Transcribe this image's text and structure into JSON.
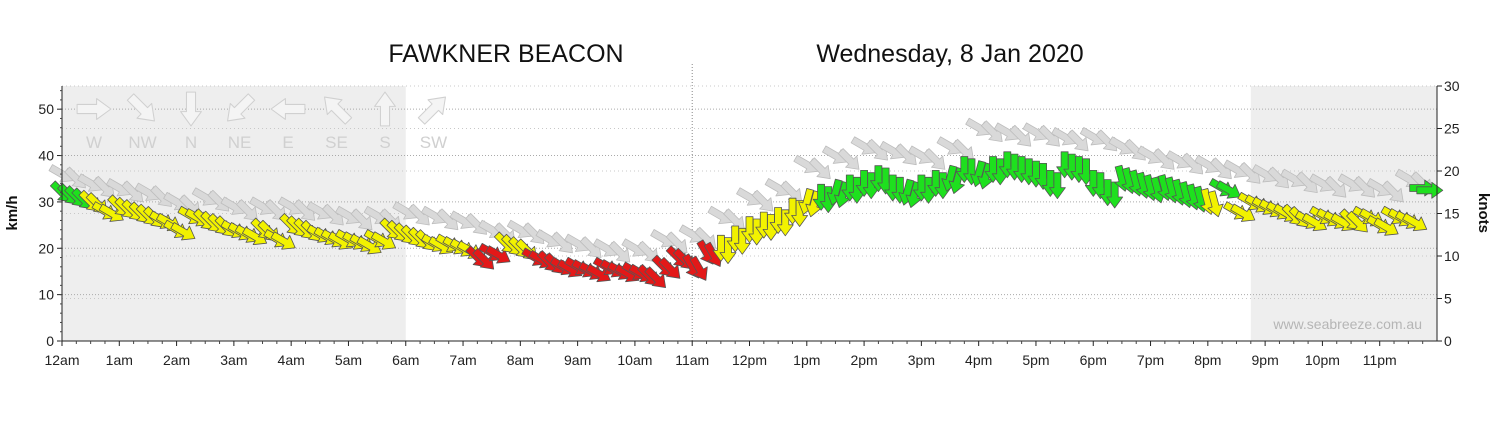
{
  "chart_data": {
    "type": "scatter",
    "title": "FAWKNER BEACON",
    "subtitle": "Wednesday, 8 Jan 2020",
    "ylabel": "km/h",
    "y2label": "knots",
    "watermark": "www.seabreeze.com.au",
    "ylim": [
      0,
      55
    ],
    "y2lim": [
      0,
      30
    ],
    "yticks": [
      0,
      10,
      20,
      30,
      40,
      50
    ],
    "y2ticks": [
      0,
      5,
      10,
      15,
      20,
      25,
      30
    ],
    "xlim": [
      0,
      24
    ],
    "xticks": [
      "12am",
      "1am",
      "2am",
      "3am",
      "4am",
      "5am",
      "6am",
      "7am",
      "8am",
      "9am",
      "10am",
      "11am",
      "12pm",
      "1pm",
      "2pm",
      "3pm",
      "4pm",
      "5pm",
      "6pm",
      "7pm",
      "8pm",
      "9pm",
      "10pm",
      "11pm"
    ],
    "current_time_hours": 11.0,
    "night_shading": [
      [
        0,
        6.0
      ],
      [
        20.75,
        24
      ]
    ],
    "grid": "horizontal-dotted",
    "legend": {
      "placement": "top-left",
      "items": [
        {
          "label": "W",
          "direction_deg": 270
        },
        {
          "label": "NW",
          "direction_deg": 315
        },
        {
          "label": "N",
          "direction_deg": 0
        },
        {
          "label": "NE",
          "direction_deg": 45
        },
        {
          "label": "E",
          "direction_deg": 90
        },
        {
          "label": "SE",
          "direction_deg": 135
        },
        {
          "label": "S",
          "direction_deg": 180
        },
        {
          "label": "SW",
          "direction_deg": 225
        }
      ]
    },
    "speed_colors": {
      "light": "#f2f200",
      "mid": "#e31818",
      "strong": "#1ee01e",
      "gust": "#d9d9d9"
    },
    "speed_bands_kmh": {
      "mid_below": 20,
      "strong_from": 31
    },
    "series": [
      {
        "name": "Average",
        "points": [
          [
            0.0,
            32,
            315
          ],
          [
            0.25,
            31,
            315
          ],
          [
            0.5,
            30,
            315
          ],
          [
            0.75,
            28,
            300
          ],
          [
            1.0,
            29,
            315
          ],
          [
            1.25,
            28,
            315
          ],
          [
            1.5,
            27,
            315
          ],
          [
            1.75,
            26,
            300
          ],
          [
            2.0,
            24,
            300
          ],
          [
            2.25,
            27,
            300
          ],
          [
            2.5,
            26,
            315
          ],
          [
            2.75,
            25,
            315
          ],
          [
            3.0,
            24,
            300
          ],
          [
            3.25,
            23,
            300
          ],
          [
            3.5,
            24,
            315
          ],
          [
            3.75,
            22,
            300
          ],
          [
            4.0,
            25,
            315
          ],
          [
            4.25,
            24,
            315
          ],
          [
            4.5,
            23,
            300
          ],
          [
            4.75,
            22,
            300
          ],
          [
            5.0,
            22,
            300
          ],
          [
            5.25,
            21,
            300
          ],
          [
            5.5,
            22,
            300
          ],
          [
            5.75,
            24,
            315
          ],
          [
            6.0,
            23,
            315
          ],
          [
            6.25,
            22,
            315
          ],
          [
            6.5,
            21,
            300
          ],
          [
            6.75,
            21,
            300
          ],
          [
            7.0,
            20,
            300
          ],
          [
            7.25,
            18,
            315
          ],
          [
            7.5,
            19,
            300
          ],
          [
            7.75,
            21,
            315
          ],
          [
            8.0,
            20,
            315
          ],
          [
            8.25,
            18,
            300
          ],
          [
            8.5,
            17,
            315
          ],
          [
            8.75,
            16,
            300
          ],
          [
            9.0,
            16,
            300
          ],
          [
            9.25,
            15,
            300
          ],
          [
            9.5,
            16,
            300
          ],
          [
            9.75,
            15,
            300
          ],
          [
            10.0,
            15,
            300
          ],
          [
            10.25,
            14,
            315
          ],
          [
            10.5,
            16,
            315
          ],
          [
            10.75,
            18,
            315
          ],
          [
            11.0,
            16,
            330
          ],
          [
            11.25,
            19,
            330
          ],
          [
            11.5,
            20,
            0
          ],
          [
            11.75,
            22,
            0
          ],
          [
            12.0,
            24,
            0
          ],
          [
            12.25,
            25,
            0
          ],
          [
            12.5,
            26,
            0
          ],
          [
            12.75,
            28,
            0
          ],
          [
            13.0,
            30,
            15
          ],
          [
            13.25,
            31,
            0
          ],
          [
            13.5,
            32,
            15
          ],
          [
            13.75,
            33,
            0
          ],
          [
            14.0,
            34,
            0
          ],
          [
            14.25,
            35,
            0
          ],
          [
            14.5,
            33,
            0
          ],
          [
            14.75,
            32,
            15
          ],
          [
            15.0,
            33,
            0
          ],
          [
            15.25,
            34,
            0
          ],
          [
            15.5,
            35,
            15
          ],
          [
            15.75,
            37,
            0
          ],
          [
            16.0,
            36,
            15
          ],
          [
            16.25,
            37,
            0
          ],
          [
            16.5,
            38,
            0
          ],
          [
            16.75,
            37,
            0
          ],
          [
            17.0,
            36,
            0
          ],
          [
            17.25,
            34,
            0
          ],
          [
            17.5,
            38,
            0
          ],
          [
            17.75,
            37,
            0
          ],
          [
            18.0,
            34,
            0
          ],
          [
            18.25,
            32,
            0
          ],
          [
            18.5,
            35,
            345
          ],
          [
            18.75,
            34,
            345
          ],
          [
            19.0,
            33,
            345
          ],
          [
            19.25,
            33,
            345
          ],
          [
            19.5,
            32,
            345
          ],
          [
            19.75,
            31,
            345
          ],
          [
            20.0,
            30,
            345
          ],
          [
            20.25,
            33,
            300
          ],
          [
            20.5,
            28,
            300
          ],
          [
            20.75,
            30,
            300
          ],
          [
            21.0,
            29,
            300
          ],
          [
            21.25,
            28,
            300
          ],
          [
            21.5,
            27,
            315
          ],
          [
            21.75,
            26,
            300
          ],
          [
            22.0,
            27,
            300
          ],
          [
            22.25,
            26,
            300
          ],
          [
            22.5,
            26,
            315
          ],
          [
            22.75,
            27,
            300
          ],
          [
            23.0,
            25,
            300
          ],
          [
            23.25,
            27,
            300
          ],
          [
            23.5,
            26,
            300
          ],
          [
            23.75,
            33,
            270
          ]
        ]
      },
      {
        "name": "Gust",
        "points": [
          [
            0.0,
            36
          ],
          [
            0.5,
            34
          ],
          [
            1.0,
            33
          ],
          [
            1.5,
            32
          ],
          [
            2.0,
            30
          ],
          [
            2.5,
            31
          ],
          [
            3.0,
            29
          ],
          [
            3.5,
            29
          ],
          [
            4.0,
            29
          ],
          [
            4.5,
            28
          ],
          [
            5.0,
            27
          ],
          [
            5.5,
            27
          ],
          [
            6.0,
            28
          ],
          [
            6.5,
            27
          ],
          [
            7.0,
            26
          ],
          [
            7.5,
            24
          ],
          [
            8.0,
            24
          ],
          [
            8.5,
            22
          ],
          [
            9.0,
            21
          ],
          [
            9.5,
            20
          ],
          [
            10.0,
            20
          ],
          [
            10.5,
            22
          ],
          [
            11.0,
            23
          ],
          [
            11.5,
            27
          ],
          [
            12.0,
            31
          ],
          [
            12.5,
            33
          ],
          [
            13.0,
            38
          ],
          [
            13.5,
            40
          ],
          [
            14.0,
            42
          ],
          [
            14.5,
            41
          ],
          [
            15.0,
            40
          ],
          [
            15.5,
            42
          ],
          [
            16.0,
            46
          ],
          [
            16.5,
            45
          ],
          [
            17.0,
            45
          ],
          [
            17.5,
            44
          ],
          [
            18.0,
            44
          ],
          [
            18.5,
            42
          ],
          [
            19.0,
            40
          ],
          [
            19.5,
            39
          ],
          [
            20.0,
            38
          ],
          [
            20.5,
            37
          ],
          [
            21.0,
            36
          ],
          [
            21.5,
            35
          ],
          [
            22.0,
            34
          ],
          [
            22.5,
            34
          ],
          [
            23.0,
            33
          ],
          [
            23.5,
            35
          ]
        ]
      }
    ]
  }
}
